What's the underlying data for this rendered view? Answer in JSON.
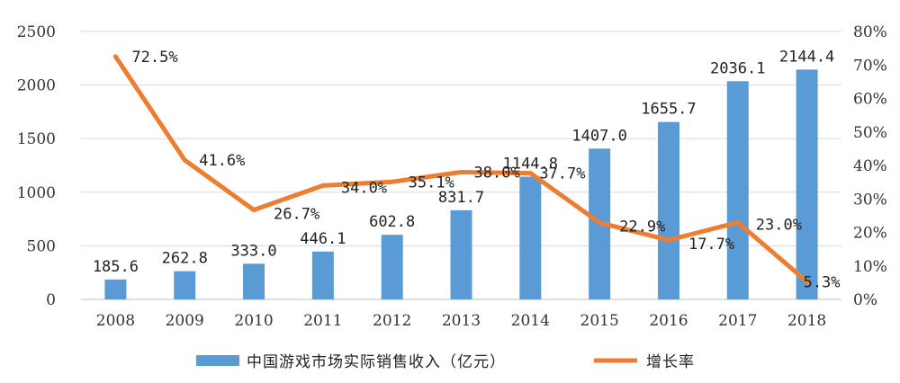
{
  "chart_data": {
    "type": "bar+line",
    "categories": [
      "2008",
      "2009",
      "2010",
      "2011",
      "2012",
      "2013",
      "2014",
      "2015",
      "2016",
      "2017",
      "2018"
    ],
    "series": [
      {
        "name": "中国游戏市场实际销售收入（亿元）",
        "type": "bar",
        "axis": "left",
        "color": "#5b9bd5",
        "values": [
          185.6,
          262.8,
          333.0,
          446.1,
          602.8,
          831.7,
          1144.8,
          1407.0,
          1655.7,
          2036.1,
          2144.4
        ],
        "labels": [
          "185.6",
          "262.8",
          "333.0",
          "446.1",
          "602.8",
          "831.7",
          "1144.8",
          "1407.0",
          "1655.7",
          "2036.1",
          "2144.4"
        ]
      },
      {
        "name": "增长率",
        "type": "line",
        "axis": "right",
        "color": "#ed7d31",
        "values": [
          72.5,
          41.6,
          26.7,
          34.0,
          35.1,
          38.0,
          37.7,
          22.9,
          17.7,
          23.0,
          5.3
        ],
        "labels": [
          "72.5%",
          "41.6%",
          "26.7%",
          "34.0%",
          "35.1%",
          "38.0%",
          "37.7%",
          "22.9%",
          "17.7%",
          "23.0%",
          "5.3%"
        ]
      }
    ],
    "left_axis": {
      "ylim": [
        0,
        2500
      ],
      "ticks": [
        "0",
        "500",
        "1000",
        "1500",
        "2000",
        "2500"
      ]
    },
    "right_axis": {
      "ylim": [
        0,
        80
      ],
      "ticks": [
        "0%",
        "10%",
        "20%",
        "30%",
        "40%",
        "50%",
        "60%",
        "70%",
        "80%"
      ]
    },
    "grid": true,
    "legend_position": "bottom"
  },
  "legend": {
    "bar_label": "中国游戏市场实际销售收入（亿元）",
    "line_label": "增长率"
  }
}
